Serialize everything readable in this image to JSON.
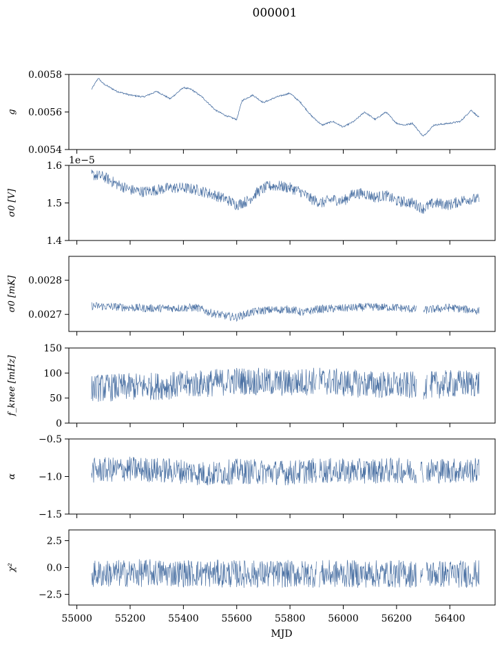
{
  "title": "000001",
  "xlabel": "MJD",
  "x_ticks": [
    55000,
    55200,
    55400,
    55600,
    55800,
    56000,
    56200,
    56400
  ],
  "line_color": "#4c72a4",
  "chart_data": [
    {
      "type": "line",
      "ylabel": "g",
      "ylim": [
        0.0054,
        0.0058
      ],
      "yticks": [
        "0.0058",
        "0.0056",
        "0.0054"
      ],
      "ytick_values": [
        0.0058,
        0.0056,
        0.0054
      ],
      "offset_text": "",
      "xlim": [
        54970,
        56570
      ],
      "data_range": [
        55055,
        56510
      ],
      "band": 8e-06,
      "series": [
        {
          "x": [
            55055,
            55080,
            55100,
            55150,
            55200,
            55250,
            55300,
            55350,
            55400,
            55430,
            55470,
            55520,
            55560,
            55600,
            55620,
            55660,
            55700,
            55750,
            55800,
            55840,
            55880,
            55920,
            55960,
            56000,
            56040,
            56080,
            56120,
            56160,
            56200,
            56230,
            56260,
            56300,
            56340,
            56400,
            56440,
            56480,
            56510
          ],
          "y": [
            0.00572,
            0.00578,
            0.00575,
            0.00571,
            0.00569,
            0.00568,
            0.00571,
            0.00567,
            0.00573,
            0.00572,
            0.00568,
            0.00561,
            0.00558,
            0.00556,
            0.00566,
            0.00569,
            0.00565,
            0.00568,
            0.0057,
            0.00565,
            0.00558,
            0.00553,
            0.00555,
            0.00552,
            0.00555,
            0.0056,
            0.00556,
            0.0056,
            0.00554,
            0.00553,
            0.00554,
            0.00547,
            0.00553,
            0.00554,
            0.00555,
            0.00561,
            0.00557
          ]
        }
      ]
    },
    {
      "type": "line",
      "ylabel": "σ0 [V]",
      "ylim": [
        1.4,
        1.6
      ],
      "yticks": [
        "1.6",
        "1.5",
        "1.4"
      ],
      "ytick_values": [
        1.6,
        1.5,
        1.4
      ],
      "offset_text": "1e−5",
      "xlim": [
        54970,
        56570
      ],
      "data_range": [
        55055,
        56510
      ],
      "band": 0.015,
      "series": [
        {
          "x": [
            55055,
            55100,
            55150,
            55200,
            55250,
            55300,
            55350,
            55400,
            55450,
            55500,
            55560,
            55600,
            55640,
            55680,
            55720,
            55760,
            55800,
            55840,
            55880,
            55920,
            55960,
            56000,
            56040,
            56080,
            56120,
            56160,
            56200,
            56260,
            56300,
            56340,
            56400,
            56460,
            56510
          ],
          "y": [
            1.575,
            1.57,
            1.55,
            1.535,
            1.53,
            1.535,
            1.54,
            1.54,
            1.535,
            1.525,
            1.51,
            1.495,
            1.505,
            1.53,
            1.545,
            1.545,
            1.54,
            1.53,
            1.51,
            1.5,
            1.51,
            1.505,
            1.525,
            1.525,
            1.515,
            1.52,
            1.505,
            1.5,
            1.485,
            1.5,
            1.495,
            1.51,
            1.51
          ]
        }
      ]
    },
    {
      "type": "line",
      "ylabel": "σ0 [mK]",
      "ylim": [
        0.00265,
        0.00287
      ],
      "yticks": [
        "0.0028",
        "0.0027"
      ],
      "ytick_values": [
        0.0028,
        0.0027
      ],
      "offset_text": "",
      "xlim": [
        54970,
        56570
      ],
      "data_range": [
        55055,
        56510
      ],
      "band": 1.2e-05,
      "gaps": [
        [
          56275,
          56300
        ]
      ],
      "series": [
        {
          "x": [
            55055,
            55150,
            55250,
            55350,
            55450,
            55500,
            55560,
            55600,
            55650,
            55700,
            55800,
            55850,
            55900,
            56000,
            56100,
            56200,
            56300,
            56400,
            56510
          ],
          "y": [
            0.002725,
            0.002722,
            0.002718,
            0.002718,
            0.00272,
            0.002705,
            0.002695,
            0.002692,
            0.002705,
            0.002712,
            0.002715,
            0.002705,
            0.002715,
            0.002718,
            0.002722,
            0.00272,
            0.002712,
            0.00272,
            0.00271
          ]
        }
      ]
    },
    {
      "type": "line",
      "ylabel": "f_knee [mHz]",
      "ylim": [
        0,
        150
      ],
      "yticks": [
        "150",
        "100",
        "50",
        "0"
      ],
      "ytick_values": [
        150,
        100,
        50,
        0
      ],
      "offset_text": "",
      "xlim": [
        54970,
        56570
      ],
      "data_range": [
        55055,
        56510
      ],
      "band": 28,
      "gaps": [
        [
          55900,
          55910
        ],
        [
          56275,
          56300
        ],
        [
          56315,
          56325
        ]
      ],
      "series": [
        {
          "x": [
            55055,
            55200,
            55350,
            55450,
            55550,
            55600,
            55700,
            55800,
            55900,
            56000,
            56100,
            56200,
            56300,
            56400,
            56510
          ],
          "y": [
            70,
            72,
            75,
            78,
            82,
            85,
            82,
            80,
            85,
            80,
            78,
            75,
            75,
            78,
            80
          ]
        }
      ]
    },
    {
      "type": "line",
      "ylabel": "α",
      "ylim": [
        -1.5,
        -0.5
      ],
      "yticks": [
        "−0.5",
        "−1.0",
        "−1.5"
      ],
      "ytick_values": [
        -0.5,
        -1.0,
        -1.5
      ],
      "offset_text": "",
      "xlim": [
        54970,
        56570
      ],
      "data_range": [
        55055,
        56510
      ],
      "band": 0.17,
      "gaps": [
        [
          55900,
          55910
        ],
        [
          56275,
          56290
        ],
        [
          56300,
          56312
        ]
      ],
      "series": [
        {
          "x": [
            55055,
            55200,
            55400,
            55500,
            55600,
            55800,
            55900,
            56000,
            56200,
            56400,
            56510
          ],
          "y": [
            -0.92,
            -0.9,
            -0.93,
            -0.97,
            -0.93,
            -0.95,
            -0.92,
            -0.93,
            -0.92,
            -0.92,
            -0.92
          ]
        }
      ]
    },
    {
      "type": "line",
      "ylabel": "χ²",
      "ylim": [
        -3.5,
        3.5
      ],
      "yticks": [
        "2.5",
        "0.0",
        "−2.5"
      ],
      "ytick_values": [
        2.5,
        0.0,
        -2.5
      ],
      "offset_text": "",
      "xlim": [
        54970,
        56570
      ],
      "data_range": [
        55055,
        56510
      ],
      "band": 1.3,
      "gaps": [
        [
          55900,
          55910
        ],
        [
          56275,
          56290
        ],
        [
          56300,
          56312
        ]
      ],
      "series": [
        {
          "x": [
            55055,
            55300,
            55600,
            55900,
            56200,
            56510
          ],
          "y": [
            -0.6,
            -0.5,
            -0.6,
            -0.6,
            -0.6,
            -0.6
          ]
        }
      ]
    }
  ]
}
